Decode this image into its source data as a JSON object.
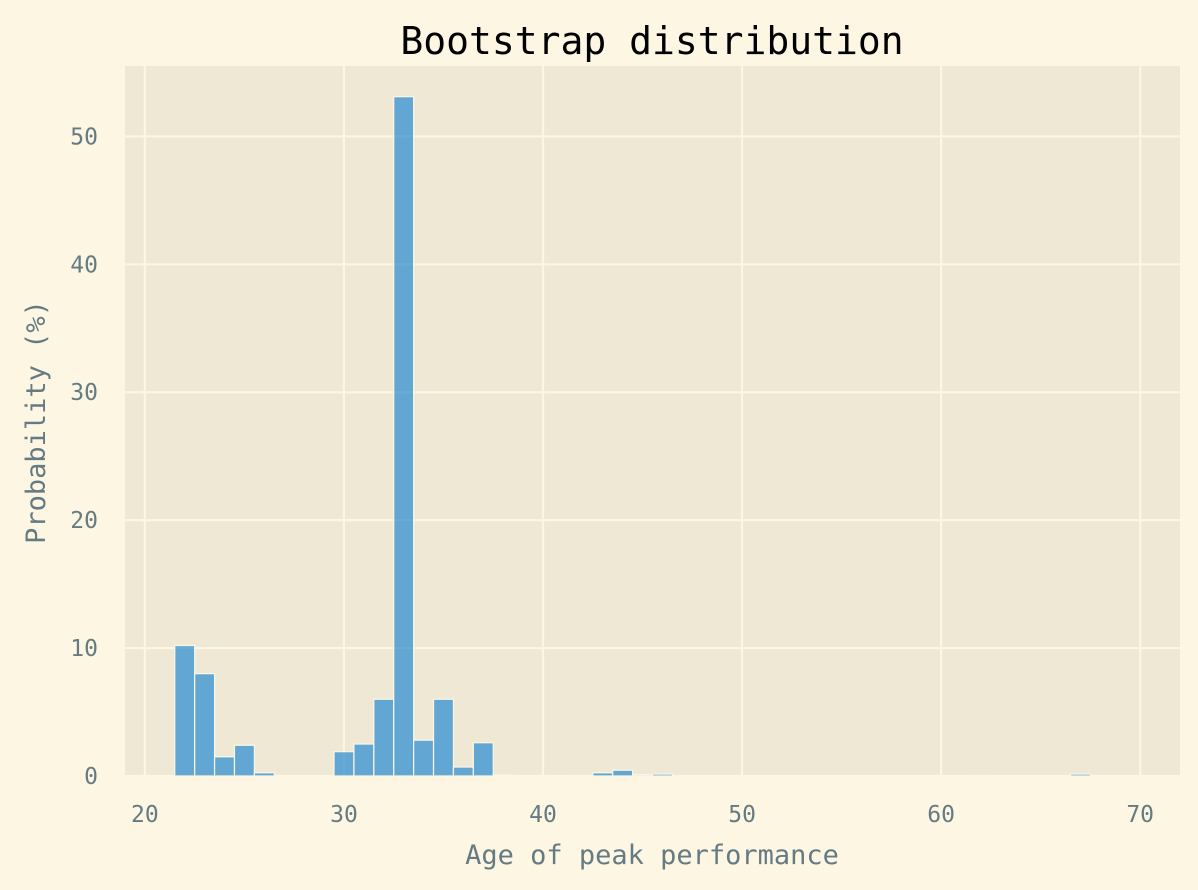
{
  "chart_data": {
    "type": "bar",
    "title": "Bootstrap distribution",
    "xlabel": "Age of peak performance",
    "ylabel": "Probability (%)",
    "xlim": [
      19,
      72
    ],
    "ylim": [
      0,
      55.5
    ],
    "xticks": [
      20,
      30,
      40,
      50,
      60,
      70
    ],
    "yticks": [
      0,
      10,
      20,
      30,
      40,
      50
    ],
    "grid": true,
    "bin_width": 1,
    "bins": [
      {
        "x0": 21.5,
        "x1": 22.5,
        "value": 10.2
      },
      {
        "x0": 22.5,
        "x1": 23.5,
        "value": 8.0
      },
      {
        "x0": 23.5,
        "x1": 24.5,
        "value": 1.5
      },
      {
        "x0": 24.5,
        "x1": 25.5,
        "value": 2.4
      },
      {
        "x0": 25.5,
        "x1": 26.5,
        "value": 0.25
      },
      {
        "x0": 29.5,
        "x1": 30.5,
        "value": 1.9
      },
      {
        "x0": 30.5,
        "x1": 31.5,
        "value": 2.5
      },
      {
        "x0": 31.5,
        "x1": 32.5,
        "value": 6.0
      },
      {
        "x0": 32.5,
        "x1": 33.5,
        "value": 53.1
      },
      {
        "x0": 33.5,
        "x1": 34.5,
        "value": 2.8
      },
      {
        "x0": 34.5,
        "x1": 35.5,
        "value": 6.0
      },
      {
        "x0": 35.5,
        "x1": 36.5,
        "value": 0.7
      },
      {
        "x0": 36.5,
        "x1": 37.5,
        "value": 2.6
      },
      {
        "x0": 37.5,
        "x1": 38.5,
        "value": 0.08
      },
      {
        "x0": 41.5,
        "x1": 42.5,
        "value": 0.05
      },
      {
        "x0": 42.5,
        "x1": 43.5,
        "value": 0.25
      },
      {
        "x0": 43.5,
        "x1": 44.5,
        "value": 0.45
      },
      {
        "x0": 44.5,
        "x1": 45.5,
        "value": 0.1
      },
      {
        "x0": 45.5,
        "x1": 46.5,
        "value": 0.15
      },
      {
        "x0": 61.5,
        "x1": 62.5,
        "value": 0.05
      },
      {
        "x0": 66.5,
        "x1": 67.5,
        "value": 0.15
      }
    ],
    "colors": {
      "background": "#fdf6e3",
      "plot_area": "#eee8d5",
      "bar_fill": "#268bd2",
      "grid": "#fdf6e3",
      "tick_text": "#657b83",
      "title_text": "#000000"
    }
  }
}
